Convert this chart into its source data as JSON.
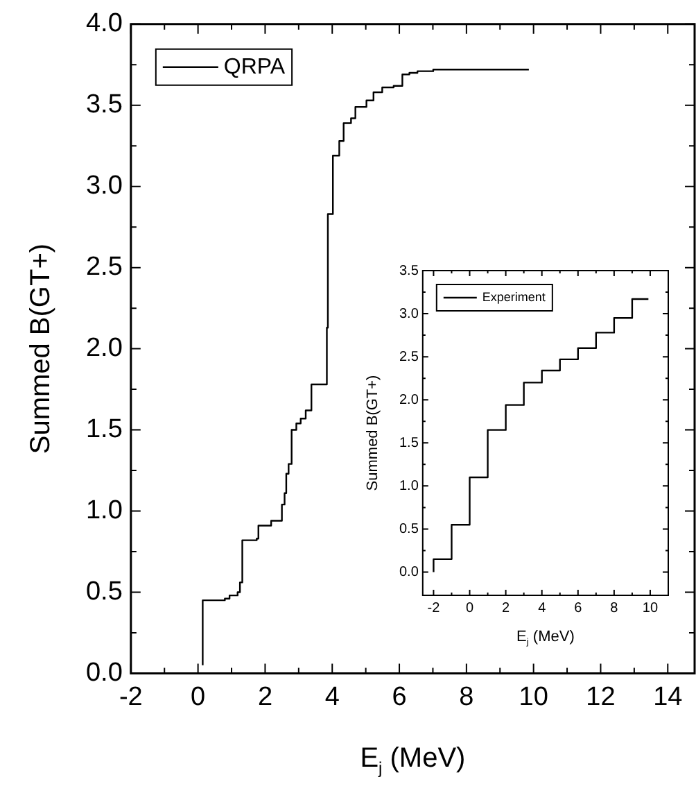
{
  "chart_data": [
    {
      "type": "step",
      "xlabel": "E$_{j}$ (MeV)",
      "ylabel": "Summed B(GT+)",
      "legend": "top left",
      "grid": false,
      "marker": "none",
      "xlim": [
        -2,
        14.8
      ],
      "ylim": [
        0,
        4
      ],
      "xticks": [
        -2,
        {
          "value": -1,
          "label": null
        },
        0,
        {
          "value": 1,
          "label": null
        },
        2,
        {
          "value": 3,
          "label": null
        },
        4,
        {
          "value": 5,
          "label": null
        },
        6,
        {
          "value": 7,
          "label": null
        },
        8,
        {
          "value": 9,
          "label": null
        },
        10,
        {
          "value": 11,
          "label": null
        },
        12,
        {
          "value": 13,
          "label": null
        },
        14
      ],
      "yticks": [
        {
          "value": 0,
          "label": "0.0"
        },
        {
          "value": 0.25,
          "label": null
        },
        {
          "value": 0.5,
          "label": "0.5"
        },
        {
          "value": 0.75,
          "label": null
        },
        {
          "value": 1,
          "label": "1.0"
        },
        {
          "value": 1.25,
          "label": null
        },
        {
          "value": 1.5,
          "label": "1.5"
        },
        {
          "value": 1.75,
          "label": null
        },
        {
          "value": 2,
          "label": "2.0"
        },
        {
          "value": 2.25,
          "label": null
        },
        {
          "value": 2.5,
          "label": "2.5"
        },
        {
          "value": 2.75,
          "label": null
        },
        {
          "value": 3,
          "label": "3.0"
        },
        {
          "value": 3.25,
          "label": null
        },
        {
          "value": 3.5,
          "label": "3.5"
        },
        {
          "value": 3.75,
          "label": null
        },
        {
          "value": 4,
          "label": "4.0"
        }
      ],
      "series": [
        {
          "name": "QRPA",
          "color": "#000000",
          "x": [
            0.14,
            0.14,
            0.8,
            0.94,
            1.18,
            1.25,
            1.32,
            1.75,
            1.8,
            2.18,
            2.5,
            2.58,
            2.63,
            2.7,
            2.79,
            2.93,
            3.06,
            3.21,
            3.38,
            3.84,
            3.87,
            4.02,
            4.21,
            4.34,
            4.56,
            4.69,
            5.02,
            5.23,
            5.49,
            5.83,
            6.09,
            6.3,
            6.54,
            7.01,
            9.86
          ],
          "values": [
            0.05,
            0.45,
            0.46,
            0.48,
            0.5,
            0.56,
            0.82,
            0.83,
            0.91,
            0.94,
            1.04,
            1.11,
            1.23,
            1.29,
            1.5,
            1.54,
            1.57,
            1.62,
            1.78,
            2.13,
            2.83,
            3.19,
            3.28,
            3.39,
            3.42,
            3.49,
            3.53,
            3.58,
            3.61,
            3.62,
            3.69,
            3.7,
            3.71,
            3.72,
            3.72
          ]
        }
      ]
    },
    {
      "type": "step",
      "xlabel": "E$_{j}$ (MeV)",
      "ylabel": "Summed B(GT+)",
      "legend": "top left",
      "grid": false,
      "marker": "none",
      "xlim": [
        -2.6,
        11
      ],
      "ylim": [
        -0.27,
        3.5
      ],
      "xticks": [
        -2,
        {
          "value": -1,
          "label": null
        },
        0,
        {
          "value": 1,
          "label": null
        },
        2,
        {
          "value": 3,
          "label": null
        },
        4,
        {
          "value": 5,
          "label": null
        },
        6,
        {
          "value": 7,
          "label": null
        },
        8,
        {
          "value": 9,
          "label": null
        },
        10
      ],
      "yticks": [
        {
          "value": 0,
          "label": "0.0"
        },
        {
          "value": 0.25,
          "label": null
        },
        {
          "value": 0.5,
          "label": "0.5"
        },
        {
          "value": 0.75,
          "label": null
        },
        {
          "value": 1,
          "label": "1.0"
        },
        {
          "value": 1.25,
          "label": null
        },
        {
          "value": 1.5,
          "label": "1.5"
        },
        {
          "value": 1.75,
          "label": null
        },
        {
          "value": 2,
          "label": "2.0"
        },
        {
          "value": 2.25,
          "label": null
        },
        {
          "value": 2.5,
          "label": "2.5"
        },
        {
          "value": 2.75,
          "label": null
        },
        {
          "value": 3,
          "label": "3.0"
        },
        {
          "value": 3.25,
          "label": null
        },
        {
          "value": 3.5,
          "label": "3.5"
        }
      ],
      "series": [
        {
          "name": "Experiment",
          "color": "#000000",
          "x": [
            -2,
            -2,
            -1,
            0,
            1,
            2,
            3,
            4,
            5,
            6,
            7,
            8,
            9,
            9.9
          ],
          "values": [
            0,
            0.15,
            0.55,
            1.1,
            1.65,
            1.94,
            2.2,
            2.34,
            2.47,
            2.6,
            2.78,
            2.95,
            3.17,
            3.17
          ]
        }
      ]
    }
  ]
}
